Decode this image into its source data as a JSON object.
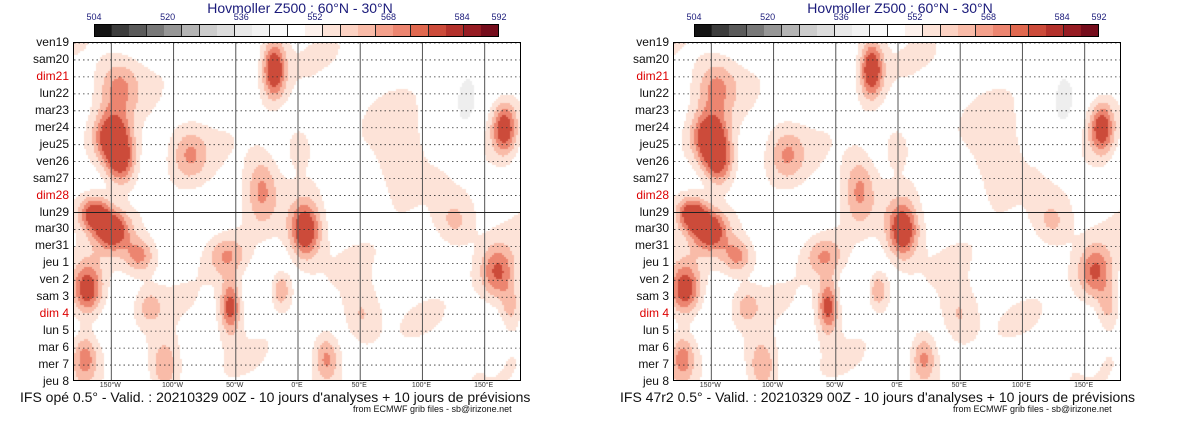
{
  "panels": [
    {
      "title": "Hovmoller Z500 : 60°N - 30°N",
      "model_caption": "IFS opé 0.5° - Valid. : 20210329 00Z - 10 jours d'analyses + 10 jours de prévisions",
      "credit": "from ECMWF grib files - sb@irizone.net"
    },
    {
      "title": "Hovmoller Z500 : 60°N - 30°N",
      "model_caption": "IFS 47r2 0.5° - Valid. : 20210329 00Z - 10 jours d'analyses + 10 jours de prévisions",
      "credit": "from ECMWF grib files - sb@irizone.net"
    }
  ],
  "chart_data": {
    "type": "heatmap",
    "title": "Hovmoller Z500 : 60°N - 30°N",
    "colorbar": {
      "range": [
        504,
        592
      ],
      "tick_labels": [
        "504",
        "520",
        "536",
        "552",
        "568",
        "584",
        "592"
      ],
      "colors": [
        "#141414",
        "#3c3c3c",
        "#5a5a5a",
        "#787878",
        "#969696",
        "#b4b4b4",
        "#cccccc",
        "#dcdcdc",
        "#e8e8e8",
        "#f2f2f2",
        "#fafafa",
        "#ffffff",
        "#fdf1ec",
        "#fde3d8",
        "#fcd2c3",
        "#f9bba8",
        "#f4a08b",
        "#ec8570",
        "#e0684f",
        "#cc4b3a",
        "#b3312b",
        "#961c23",
        "#750d1c"
      ]
    },
    "y_labels": [
      {
        "text": "ven19",
        "sunday": false
      },
      {
        "text": "sam20",
        "sunday": false
      },
      {
        "text": "dim21",
        "sunday": true
      },
      {
        "text": "lun22",
        "sunday": false
      },
      {
        "text": "mar23",
        "sunday": false
      },
      {
        "text": "mer24",
        "sunday": false
      },
      {
        "text": "jeu25",
        "sunday": false
      },
      {
        "text": "ven26",
        "sunday": false
      },
      {
        "text": "sam27",
        "sunday": false
      },
      {
        "text": "dim28",
        "sunday": true
      },
      {
        "text": "lun29",
        "sunday": false
      },
      {
        "text": "mar30",
        "sunday": false
      },
      {
        "text": "mer31",
        "sunday": false
      },
      {
        "text": "jeu 1",
        "sunday": false
      },
      {
        "text": "ven 2",
        "sunday": false
      },
      {
        "text": "sam 3",
        "sunday": false
      },
      {
        "text": "dim 4",
        "sunday": true
      },
      {
        "text": "lun 5",
        "sunday": false
      },
      {
        "text": "mar 6",
        "sunday": false
      },
      {
        "text": "mer 7",
        "sunday": false
      },
      {
        "text": "jeu 8",
        "sunday": false
      }
    ],
    "analysis_forecast_split": "lun29",
    "x_ticks": [
      {
        "lon": -150,
        "label": "150°W"
      },
      {
        "lon": -100,
        "label": "100°W"
      },
      {
        "lon": -50,
        "label": "50°W"
      },
      {
        "lon": 0,
        "label": "0°E"
      },
      {
        "lon": 50,
        "label": "50°E"
      },
      {
        "lon": 100,
        "label": "100°E"
      },
      {
        "lon": 150,
        "label": "150°E"
      }
    ],
    "x_range": [
      -180,
      180
    ],
    "features": [
      {
        "lon": -145,
        "day": 2.5,
        "sx": 16,
        "sy": 1.6,
        "v": 0.5
      },
      {
        "lon": -150,
        "day": 5.5,
        "sx": 14,
        "sy": 1.5,
        "v": 1.0
      },
      {
        "lon": -143,
        "day": 7.0,
        "sx": 12,
        "sy": 1.4,
        "v": 0.8
      },
      {
        "lon": -165,
        "day": 10.0,
        "sx": 12,
        "sy": 1.0,
        "v": 0.9
      },
      {
        "lon": -150,
        "day": 11.0,
        "sx": 14,
        "sy": 1.2,
        "v": 0.9
      },
      {
        "lon": -128,
        "day": 12.5,
        "sx": 12,
        "sy": 1.0,
        "v": 0.55
      },
      {
        "lon": -170,
        "day": 14.5,
        "sx": 12,
        "sy": 1.5,
        "v": 0.9
      },
      {
        "lon": -172,
        "day": 18.5,
        "sx": 10,
        "sy": 1.4,
        "v": 0.6
      },
      {
        "lon": -108,
        "day": 19.0,
        "sx": 12,
        "sy": 1.6,
        "v": 0.55
      },
      {
        "lon": -120,
        "day": 15.5,
        "sx": 10,
        "sy": 1.0,
        "v": 0.35
      },
      {
        "lon": -88,
        "day": 6.5,
        "sx": 14,
        "sy": 1.5,
        "v": 0.45
      },
      {
        "lon": -58,
        "day": 12.5,
        "sx": 16,
        "sy": 1.2,
        "v": 0.5
      },
      {
        "lon": -55,
        "day": 15.5,
        "sx": 8,
        "sy": 1.5,
        "v": 0.85
      },
      {
        "lon": -30,
        "day": 8.5,
        "sx": 12,
        "sy": 2.0,
        "v": 0.5
      },
      {
        "lon": -20,
        "day": 1.5,
        "sx": 9,
        "sy": 1.6,
        "v": 1.0
      },
      {
        "lon": -15,
        "day": 14.5,
        "sx": 8,
        "sy": 1.0,
        "v": 0.55
      },
      {
        "lon": 5,
        "day": 11.0,
        "sx": 12,
        "sy": 1.6,
        "v": 1.0
      },
      {
        "lon": 0,
        "day": 6.0,
        "sx": 10,
        "sy": 1.2,
        "v": 0.3
      },
      {
        "lon": 22,
        "day": 18.5,
        "sx": 10,
        "sy": 1.4,
        "v": 0.6
      },
      {
        "lon": 50,
        "day": 16.0,
        "sx": 14,
        "sy": 1.6,
        "v": 0.35
      },
      {
        "lon": 80,
        "day": 7.0,
        "sx": 18,
        "sy": 2.5,
        "v": 0.3
      },
      {
        "lon": 125,
        "day": 10.5,
        "sx": 16,
        "sy": 1.5,
        "v": 0.4
      },
      {
        "lon": 165,
        "day": 5.0,
        "sx": 10,
        "sy": 1.5,
        "v": 0.9
      },
      {
        "lon": 160,
        "day": 13.5,
        "sx": 14,
        "sy": 1.6,
        "v": 0.75
      },
      {
        "lon": 170,
        "day": 15.5,
        "sx": 8,
        "sy": 1.2,
        "v": 0.4
      },
      {
        "lon": 135,
        "day": 3.0,
        "sx": 9,
        "sy": 1.6,
        "v": -0.5
      },
      {
        "lon": 130,
        "day": 5.5,
        "sx": 12,
        "sy": 2.2,
        "v": -0.25
      },
      {
        "lon": 160,
        "day": 1.0,
        "sx": 10,
        "sy": 1.4,
        "v": -0.2
      },
      {
        "lon": -30,
        "day": 14.5,
        "sx": 10,
        "sy": 1.2,
        "v": -0.15
      },
      {
        "lon": 25,
        "day": 3.0,
        "sx": 8,
        "sy": 1.0,
        "v": -0.1
      },
      {
        "lon": -10,
        "day": 19.0,
        "sx": 6,
        "sy": 1.0,
        "v": -0.4
      },
      {
        "lon": 90,
        "day": 19.5,
        "sx": 10,
        "sy": 1.0,
        "v": -0.25
      },
      {
        "lon": 155,
        "day": 18.0,
        "sx": 8,
        "sy": 1.2,
        "v": -0.2
      }
    ]
  }
}
